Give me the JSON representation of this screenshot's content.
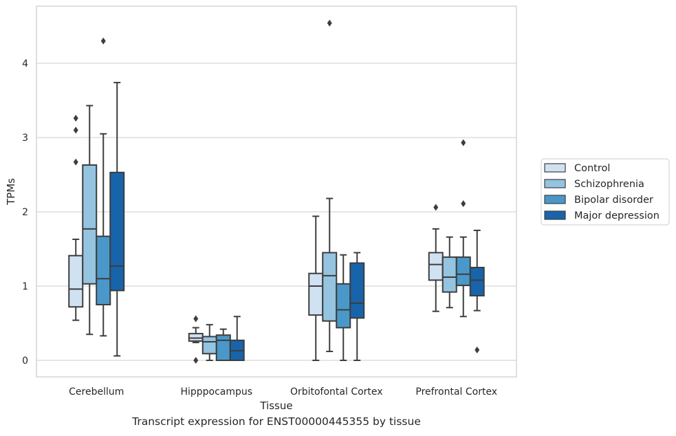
{
  "caption": "Transcript expression for ENST00000445355 by tissue",
  "chart_data": {
    "type": "box",
    "title": "",
    "xlabel": "Tissue",
    "ylabel": "TPMs",
    "ylim": [
      -0.22,
      4.77
    ],
    "yticks": [
      0,
      1,
      2,
      3,
      4
    ],
    "grid": "horizontal",
    "legend_position": "right",
    "categories": [
      "Cerebellum",
      "Hipppocampus",
      "Orbitofontal Cortex",
      "Prefrontal Cortex"
    ],
    "series": [
      {
        "name": "Control",
        "color": "#d0e1f2",
        "boxes": [
          {
            "whislo": 0.54,
            "q1": 0.72,
            "med": 0.96,
            "q3": 1.41,
            "whishi": 1.63,
            "fliers": [
              3.26,
              3.1,
              2.67
            ]
          },
          {
            "whislo": 0.24,
            "q1": 0.26,
            "med": 0.3,
            "q3": 0.36,
            "whishi": 0.44,
            "fliers": [
              0.56,
              0.0
            ]
          },
          {
            "whislo": 0.0,
            "q1": 0.61,
            "med": 1.0,
            "q3": 1.17,
            "whishi": 1.94,
            "fliers": []
          },
          {
            "whislo": 0.66,
            "q1": 1.08,
            "med": 1.29,
            "q3": 1.45,
            "whishi": 1.77,
            "fliers": [
              2.06
            ]
          }
        ]
      },
      {
        "name": "Schizophrenia",
        "color": "#94c4df",
        "boxes": [
          {
            "whislo": 0.35,
            "q1": 1.03,
            "med": 1.77,
            "q3": 2.63,
            "whishi": 3.43,
            "fliers": []
          },
          {
            "whislo": 0.0,
            "q1": 0.09,
            "med": 0.25,
            "q3": 0.32,
            "whishi": 0.48,
            "fliers": []
          },
          {
            "whislo": 0.12,
            "q1": 0.53,
            "med": 1.14,
            "q3": 1.45,
            "whishi": 2.18,
            "fliers": [
              4.54
            ]
          },
          {
            "whislo": 0.71,
            "q1": 0.92,
            "med": 1.12,
            "q3": 1.39,
            "whishi": 1.66,
            "fliers": []
          }
        ]
      },
      {
        "name": "Bipolar disorder",
        "color": "#4a98c9",
        "boxes": [
          {
            "whislo": 0.33,
            "q1": 0.75,
            "med": 1.1,
            "q3": 1.67,
            "whishi": 3.05,
            "fliers": [
              4.3
            ]
          },
          {
            "whislo": 0.0,
            "q1": 0.0,
            "med": 0.27,
            "q3": 0.34,
            "whishi": 0.42,
            "fliers": []
          },
          {
            "whislo": 0.0,
            "q1": 0.44,
            "med": 0.68,
            "q3": 1.03,
            "whishi": 1.42,
            "fliers": []
          },
          {
            "whislo": 0.59,
            "q1": 1.01,
            "med": 1.16,
            "q3": 1.39,
            "whishi": 1.66,
            "fliers": [
              2.93,
              2.11
            ]
          }
        ]
      },
      {
        "name": "Major depression",
        "color": "#1764ab",
        "boxes": [
          {
            "whislo": 0.06,
            "q1": 0.94,
            "med": 1.27,
            "q3": 2.53,
            "whishi": 3.74,
            "fliers": []
          },
          {
            "whislo": 0.0,
            "q1": 0.0,
            "med": 0.13,
            "q3": 0.27,
            "whishi": 0.59,
            "fliers": []
          },
          {
            "whislo": 0.0,
            "q1": 0.57,
            "med": 0.77,
            "q3": 1.31,
            "whishi": 1.45,
            "fliers": []
          },
          {
            "whislo": 0.67,
            "q1": 0.87,
            "med": 1.08,
            "q3": 1.25,
            "whishi": 1.75,
            "fliers": [
              0.14
            ]
          }
        ]
      }
    ]
  }
}
